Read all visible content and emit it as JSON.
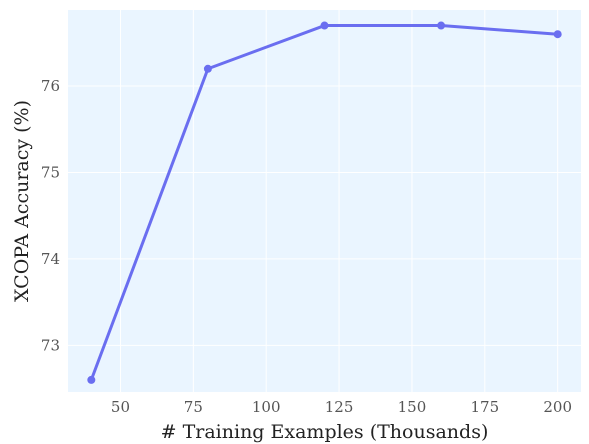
{
  "chart_data": {
    "type": "line",
    "title": "",
    "xlabel": "# Training Examples (Thousands)",
    "ylabel": "XCOPA Accuracy (%)",
    "x": [
      40,
      80,
      120,
      160,
      200
    ],
    "series": [
      {
        "values": [
          72.6,
          76.2,
          76.7,
          76.7,
          76.6
        ]
      }
    ],
    "xticks": [
      50,
      75,
      100,
      125,
      150,
      175,
      200
    ],
    "yticks": [
      73,
      74,
      75,
      76
    ],
    "xlim": [
      32,
      208
    ],
    "ylim": [
      72.46,
      76.88
    ],
    "grid": true,
    "legend": "none",
    "colors": {
      "line": "#6a6ef0",
      "plot_background": "#eaf5ff",
      "grid": "#ffffff"
    }
  }
}
